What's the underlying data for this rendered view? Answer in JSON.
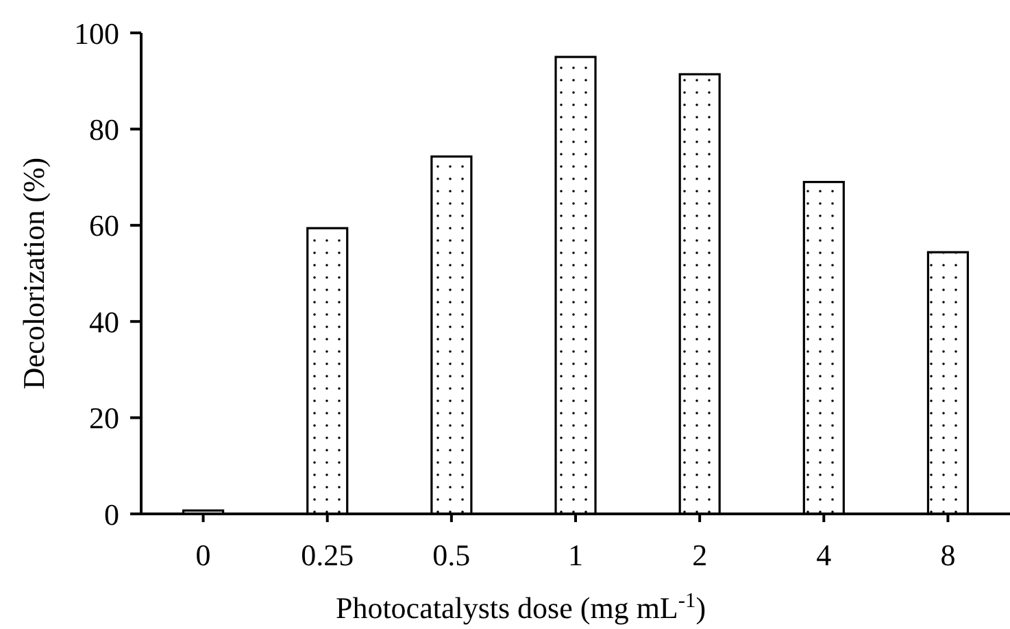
{
  "chart_data": {
    "type": "bar",
    "xlabel": "Photocatalysts dose (mg mL$^{-1}$)",
    "ylabel": "Decolorization (%)",
    "categories": [
      "0",
      "0.25",
      "0.5",
      "1",
      "2",
      "4",
      "8"
    ],
    "values": [
      0.7,
      59.4,
      74.3,
      95.0,
      91.4,
      69.0,
      54.4
    ],
    "color": "#ffffff",
    "ylim": [
      0,
      100
    ],
    "yticks": [
      0,
      20,
      40,
      60,
      80,
      100
    ],
    "grid": false,
    "legend": false
  }
}
